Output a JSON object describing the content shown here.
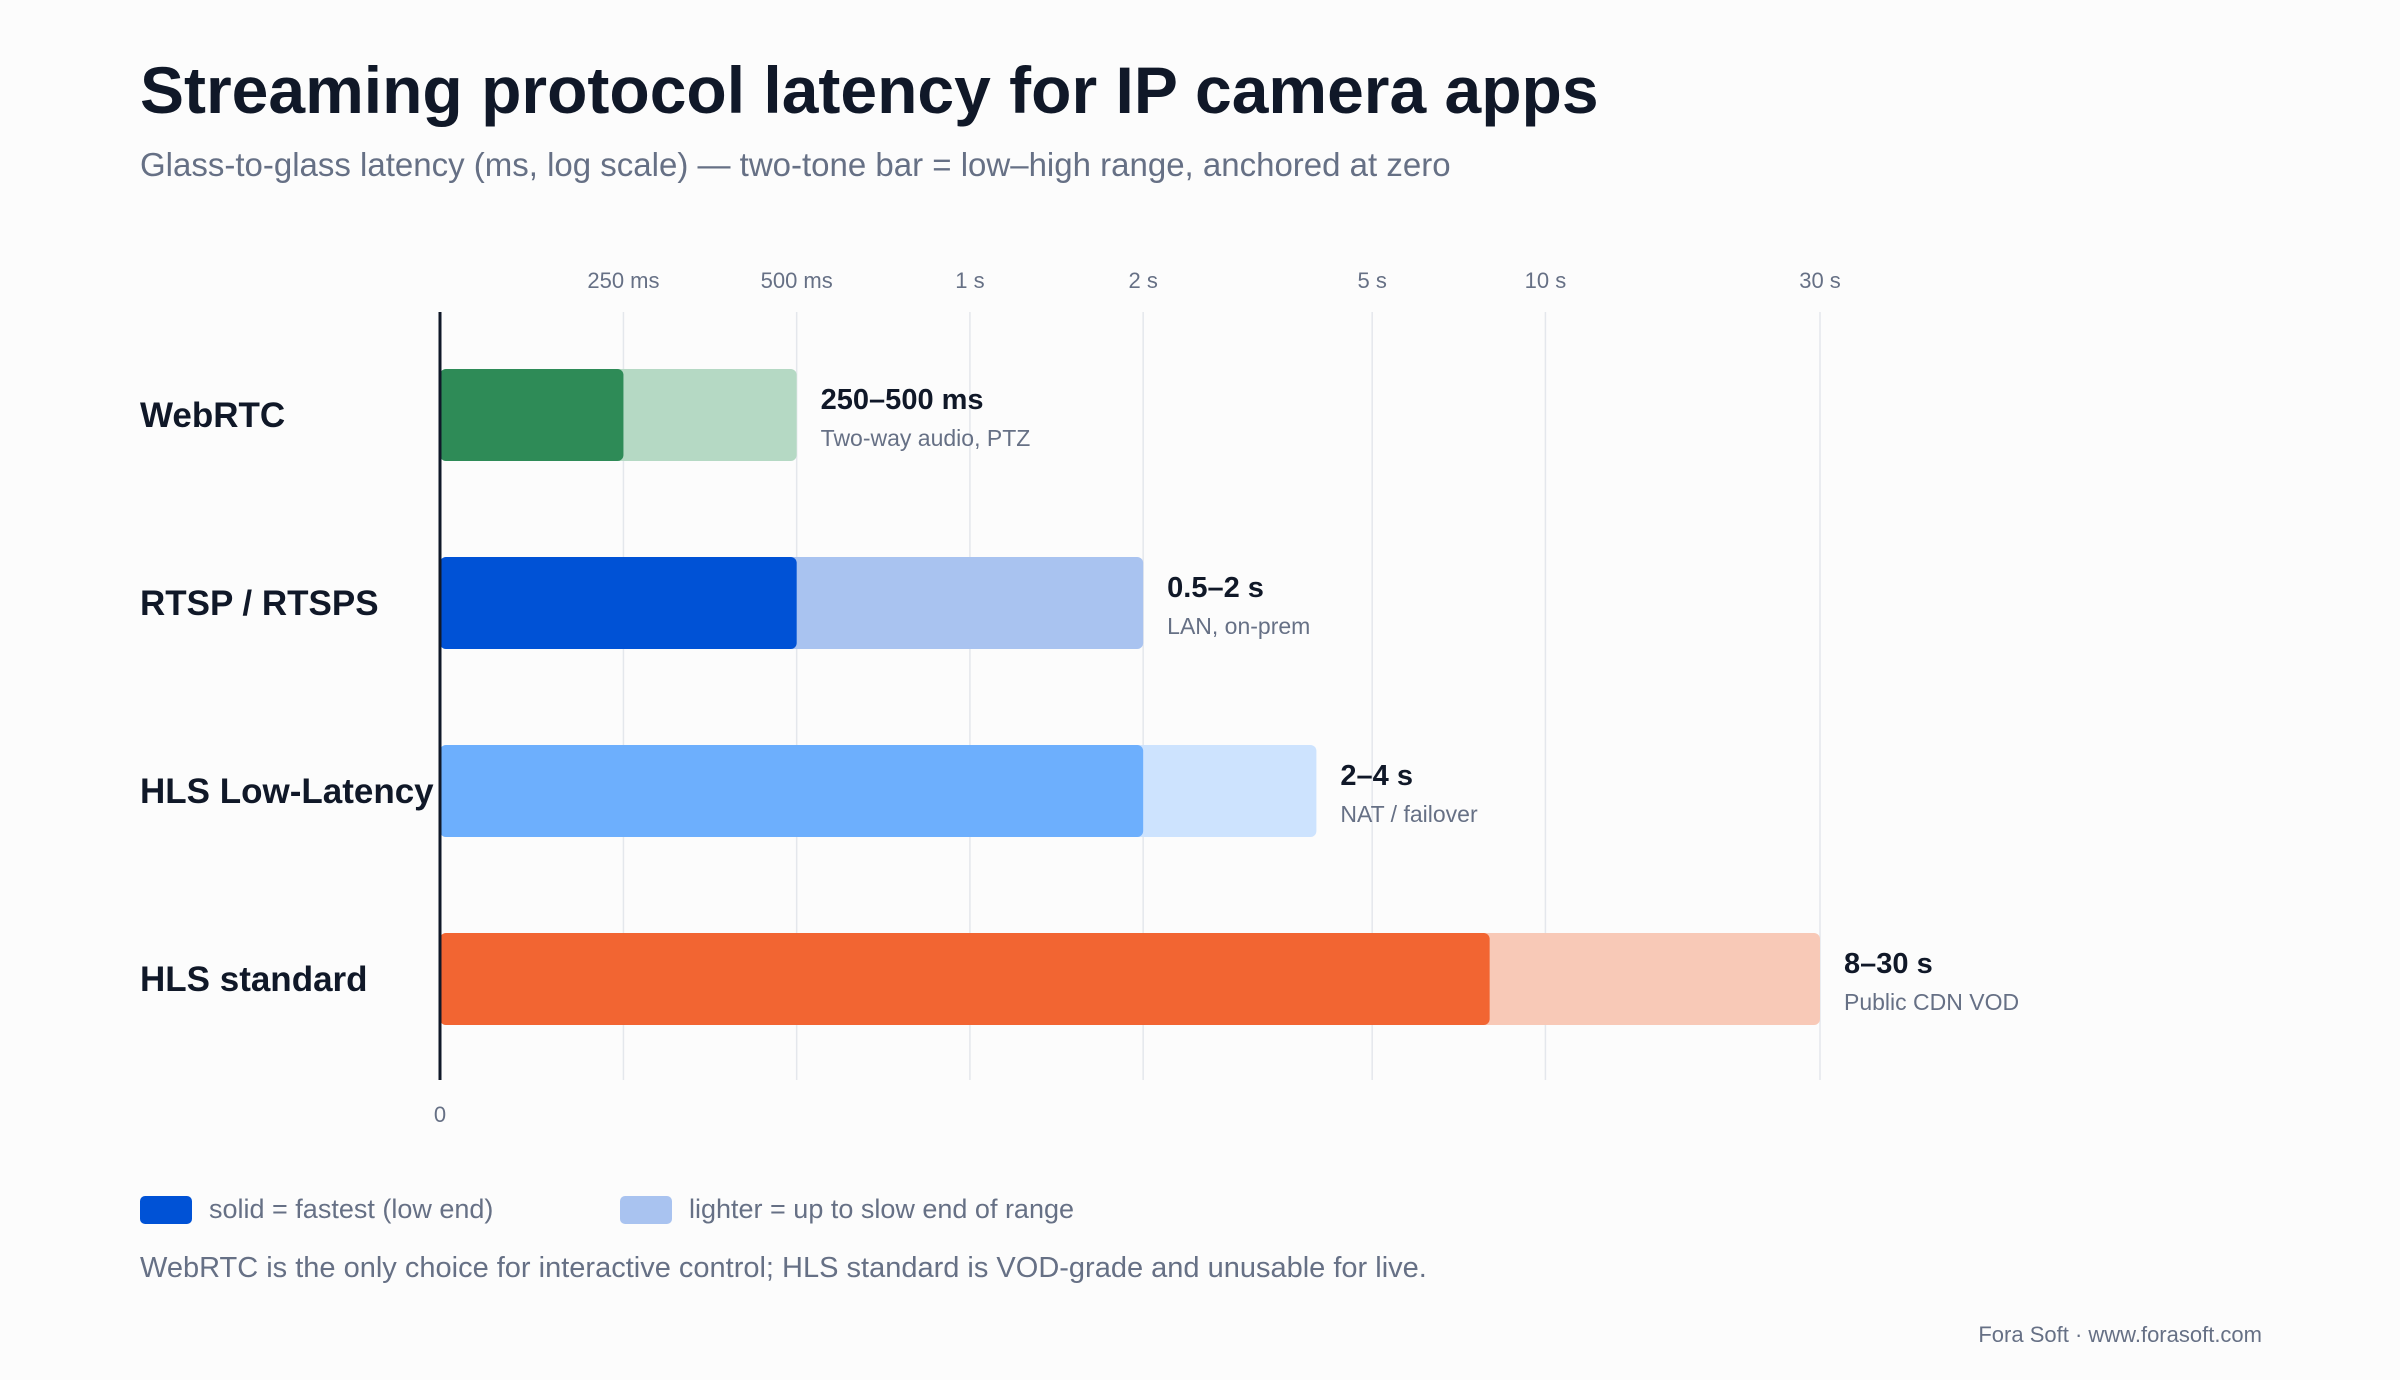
{
  "title": "Streaming protocol latency for IP camera apps",
  "subtitle": "Glass-to-glass latency (ms, log scale) — two-tone bar = low–high range, anchored at zero",
  "legend": {
    "solid_label": "solid = fastest (low end)",
    "light_label": "lighter = up to slow end of range",
    "solid_color": "#0052d6",
    "light_color": "#a9c3f0"
  },
  "footnote": "WebRTC is the only choice for interactive control; HLS standard is VOD-grade and unusable for live.",
  "credit": "Fora Soft · www.forasoft.com",
  "chart_data": {
    "type": "bar",
    "orientation": "horizontal",
    "scale": "log",
    "unit": "ms",
    "xlim": [
      120,
      30000
    ],
    "zero_label": "0",
    "ticks": [
      {
        "value": 250,
        "label": "250 ms"
      },
      {
        "value": 500,
        "label": "500 ms"
      },
      {
        "value": 1000,
        "label": "1 s"
      },
      {
        "value": 2000,
        "label": "2 s"
      },
      {
        "value": 5000,
        "label": "5 s"
      },
      {
        "value": 10000,
        "label": "10 s"
      },
      {
        "value": 30000,
        "label": "30 s"
      }
    ],
    "grid": true,
    "categories": [
      "WebRTC",
      "RTSP / RTSPS",
      "HLS Low-Latency",
      "HLS standard"
    ],
    "series": [
      {
        "category": "WebRTC",
        "low": 250,
        "high": 500,
        "range_label": "250–500 ms",
        "note": "Two-way audio, PTZ",
        "solid_color": "#2e8b57",
        "light_color": "#b5d9c4"
      },
      {
        "category": "RTSP / RTSPS",
        "low": 500,
        "high": 2000,
        "range_label": "0.5–2 s",
        "note": "LAN, on-prem",
        "solid_color": "#0052d6",
        "light_color": "#a9c3f0"
      },
      {
        "category": "HLS Low-Latency",
        "low": 2000,
        "high": 4000,
        "range_label": "2–4 s",
        "note": "NAT / failover",
        "solid_color": "#6daffd",
        "light_color": "#cde3fe"
      },
      {
        "category": "HLS standard",
        "low": 8000,
        "high": 30000,
        "range_label": "8–30 s",
        "note": "Public CDN VOD",
        "solid_color": "#f26532",
        "light_color": "#f8c9b7"
      }
    ]
  }
}
